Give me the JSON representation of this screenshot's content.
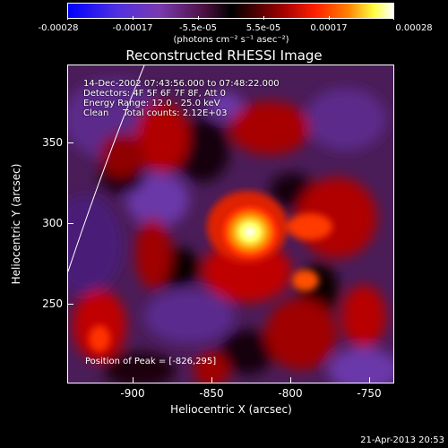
{
  "colorbar": {
    "ticks": [
      "-0.00028",
      "-0.00017",
      "-5.5e-05",
      "5.5e-05",
      "0.00017",
      "0.00028"
    ],
    "unit": "(photons cm⁻² s⁻¹ asec⁻²)"
  },
  "title": "Reconstructed RHESSI Image",
  "info": {
    "line1": "14-Dec-2002 07:43:56.000 to 07:48:22.000",
    "line2": "Detectors: 4F 5F 6F 7F 8F, Att 0",
    "line3": "Energy Range: 12.0 - 25.0 keV",
    "line4": "Clean     Total counts: 2.12E+03"
  },
  "peak_text": "Position of Peak = [-826,295]",
  "axes": {
    "x_ticks": [
      "-900",
      "-850",
      "-800",
      "-750"
    ],
    "y_ticks": [
      "350",
      "300",
      "250"
    ],
    "x_label": "Heliocentric X (arcsec)",
    "y_label": "Heliocentric Y (arcsec)"
  },
  "footer": "21-Apr-2013 20:53"
}
